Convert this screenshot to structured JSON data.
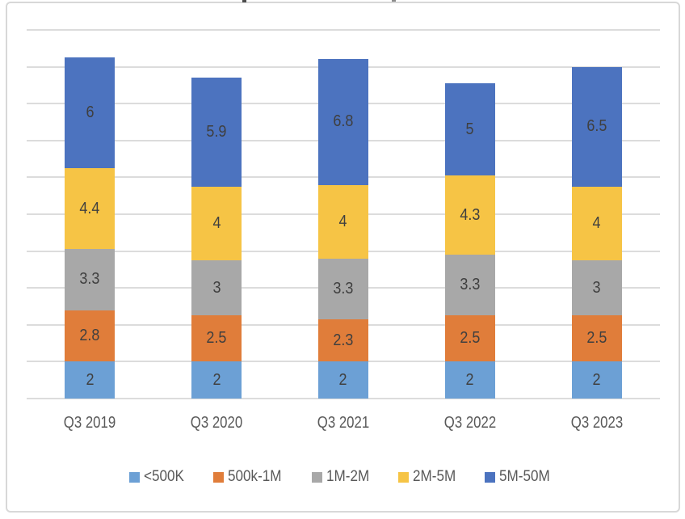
{
  "chart_data": {
    "type": "bar",
    "stacked": true,
    "title": "",
    "categories": [
      "Q3 2019",
      "Q3 2020",
      "Q3 2021",
      "Q3 2022",
      "Q3 2023"
    ],
    "series": [
      {
        "name": "<500K",
        "color": "#6CA0D5",
        "values": [
          2,
          2,
          2,
          2,
          2
        ]
      },
      {
        "name": "500k-1M",
        "color": "#E07D3A",
        "values": [
          2.8,
          2.5,
          2.3,
          2.5,
          2.5
        ]
      },
      {
        "name": "1M-2M",
        "color": "#A8A8A8",
        "values": [
          3.3,
          3,
          3.3,
          3.3,
          3
        ]
      },
      {
        "name": "2M-5M",
        "color": "#F6C445",
        "values": [
          4.4,
          4,
          4,
          4.3,
          4
        ]
      },
      {
        "name": "5M-50M",
        "color": "#4C73BF",
        "values": [
          6,
          5.9,
          6.8,
          5,
          6.5
        ]
      }
    ],
    "ylim": [
      0,
      20
    ],
    "grid_step": 2,
    "grid": true,
    "y_axis_labels_visible": false,
    "legend_position": "bottom",
    "data_labels_visible": true,
    "label_color": "#3F3F3F",
    "axis_label_color": "#595959",
    "gridline_color": "#DCDCDC",
    "frame_border_color": "#D8D8D8"
  }
}
